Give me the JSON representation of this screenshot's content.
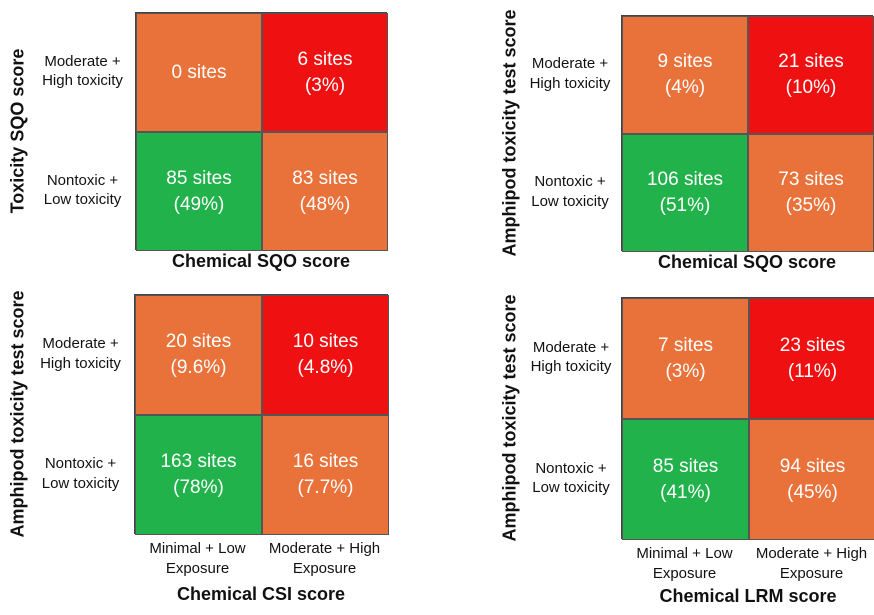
{
  "colors": {
    "low_low": "#21b24b",
    "mixed": "#e9713a",
    "high_high": "#ef1111"
  },
  "chart_data": [
    {
      "type": "heatmap",
      "ylabel": "Toxicity SQO score",
      "xlabel": "Chemical SQO score",
      "row_labels": [
        "Moderate +\nHigh toxicity",
        "Nontoxic +\nLow toxicity"
      ],
      "col_labels": [
        "",
        ""
      ],
      "cells": [
        [
          {
            "count": "0 sites",
            "pct": ""
          },
          {
            "count": "6 sites",
            "pct": "(3%)"
          }
        ],
        [
          {
            "count": "85 sites",
            "pct": "(49%)"
          },
          {
            "count": "83 sites",
            "pct": "(48%)"
          }
        ]
      ]
    },
    {
      "type": "heatmap",
      "ylabel": "Amphipod toxicity test score",
      "xlabel": "Chemical SQO score",
      "row_labels": [
        "Moderate +\nHigh toxicity",
        "Nontoxic +\nLow toxicity"
      ],
      "col_labels": [
        "",
        ""
      ],
      "cells": [
        [
          {
            "count": "9 sites",
            "pct": "(4%)"
          },
          {
            "count": "21 sites",
            "pct": "(10%)"
          }
        ],
        [
          {
            "count": "106 sites",
            "pct": "(51%)"
          },
          {
            "count": "73 sites",
            "pct": "(35%)"
          }
        ]
      ]
    },
    {
      "type": "heatmap",
      "ylabel": "Amphipod toxicity test score",
      "xlabel": "Chemical CSI score",
      "row_labels": [
        "Moderate +\nHigh toxicity",
        "Nontoxic +\nLow toxicity"
      ],
      "col_labels": [
        "Minimal + Low\nExposure",
        "Moderate + High\nExposure"
      ],
      "cells": [
        [
          {
            "count": "20 sites",
            "pct": "(9.6%)"
          },
          {
            "count": "10 sites",
            "pct": "(4.8%)"
          }
        ],
        [
          {
            "count": "163 sites",
            "pct": "(78%)"
          },
          {
            "count": "16 sites",
            "pct": "(7.7%)"
          }
        ]
      ]
    },
    {
      "type": "heatmap",
      "ylabel": "Amphipod toxicity test score",
      "xlabel": "Chemical LRM score",
      "row_labels": [
        "Moderate +\nHigh toxicity",
        "Nontoxic +\nLow toxicity"
      ],
      "col_labels": [
        "Minimal + Low\nExposure",
        "Moderate + High\nExposure"
      ],
      "cells": [
        [
          {
            "count": "7 sites",
            "pct": "(3%)"
          },
          {
            "count": "23 sites",
            "pct": "(11%)"
          }
        ],
        [
          {
            "count": "85 sites",
            "pct": "(41%)"
          },
          {
            "count": "94 sites",
            "pct": "(45%)"
          }
        ]
      ]
    }
  ]
}
